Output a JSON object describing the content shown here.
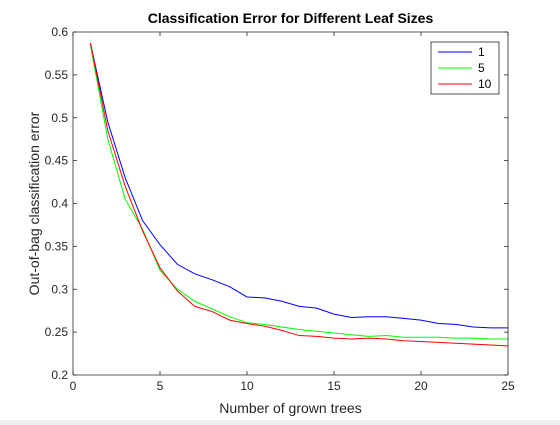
{
  "chart_data": {
    "type": "line",
    "title": "Classification Error for Different Leaf Sizes",
    "xlabel": "Number of grown trees",
    "ylabel": "Out-of-bag classification error",
    "xlim": [
      0,
      25
    ],
    "ylim": [
      0.2,
      0.6
    ],
    "xticks": [
      "0",
      "5",
      "10",
      "15",
      "20",
      "25"
    ],
    "yticks": [
      "0.2",
      "0.25",
      "0.3",
      "0.35",
      "0.4",
      "0.45",
      "0.5",
      "0.55",
      "0.6"
    ],
    "grid": false,
    "legend_position": "top-right",
    "x": [
      1,
      2,
      3,
      4,
      5,
      6,
      7,
      8,
      9,
      10,
      11,
      12,
      13,
      14,
      15,
      16,
      17,
      18,
      19,
      20,
      21,
      22,
      23,
      24,
      25
    ],
    "series": [
      {
        "name": "1",
        "color": "#0000ff",
        "values": [
          0.587,
          0.495,
          0.43,
          0.38,
          0.352,
          0.329,
          0.318,
          0.311,
          0.303,
          0.291,
          0.29,
          0.286,
          0.28,
          0.278,
          0.271,
          0.267,
          0.268,
          0.268,
          0.266,
          0.264,
          0.26,
          0.259,
          0.256,
          0.255,
          0.255
        ]
      },
      {
        "name": "5",
        "color": "#00ff00",
        "values": [
          0.585,
          0.475,
          0.405,
          0.37,
          0.322,
          0.3,
          0.286,
          0.277,
          0.268,
          0.261,
          0.259,
          0.256,
          0.253,
          0.251,
          0.249,
          0.247,
          0.245,
          0.246,
          0.244,
          0.244,
          0.244,
          0.243,
          0.243,
          0.242,
          0.242
        ]
      },
      {
        "name": "10",
        "color": "#ff0000",
        "values": [
          0.587,
          0.485,
          0.42,
          0.368,
          0.325,
          0.298,
          0.28,
          0.274,
          0.264,
          0.26,
          0.257,
          0.252,
          0.246,
          0.245,
          0.243,
          0.242,
          0.243,
          0.242,
          0.24,
          0.239,
          0.238,
          0.237,
          0.236,
          0.235,
          0.234
        ]
      }
    ]
  }
}
